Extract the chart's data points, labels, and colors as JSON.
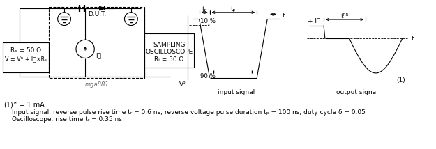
{
  "bg_color": "#ffffff",
  "circuit_label": "mga881",
  "footnote_2": "Input signal: reverse pulse rise time tᵣ = 0.6 ns; reverse voltage pulse duration tₚ = 100 ns; duty cycle δ = 0.05",
  "footnote_3": "Oscilloscope: rise time tᵣ = 0.35 ns",
  "label_input": "input signal",
  "label_output": "output signal",
  "text_Rs": "Rₛ = 50 Ω",
  "text_V": "V = Vᴿ + I₟×Rₛ",
  "text_DUT": "D.U.T.",
  "text_scope_1": "SAMPLING",
  "text_scope_2": "OSCILLOSCOPE",
  "text_Ri": "Rᵢ = 50 Ω",
  "text_IF": "I₟",
  "text_VR": "Vᴿ",
  "text_tr": "tᵣ",
  "text_tp": "tₚ",
  "text_t": "t",
  "text_10pct": "10 %",
  "text_90pct": "90 %",
  "text_IF_out": "+ I₟",
  "text_trr": "tᴿᴿ",
  "text_t_out": "t",
  "text_1_out": "(1)",
  "text_fn1a": "(1)",
  "text_fn1b": "Iᴿ = 1 mA",
  "text_fn2_pre": "Input signal: reverse pulse rise time t",
  "text_fn3_pre": "Oscilloscope: rise time t"
}
